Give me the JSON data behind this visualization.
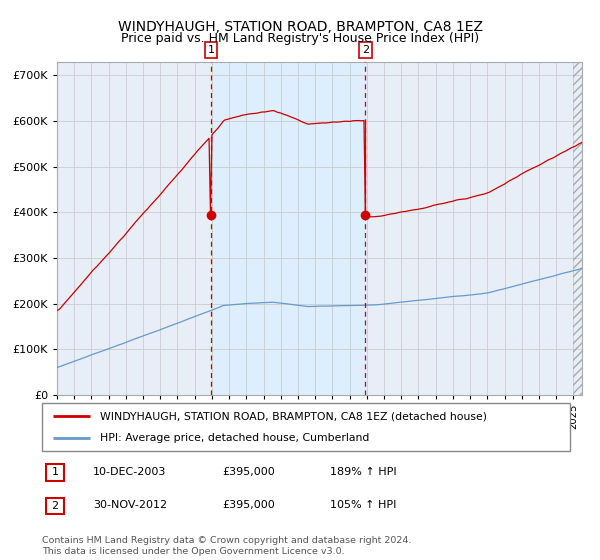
{
  "title": "WINDYHAUGH, STATION ROAD, BRAMPTON, CA8 1EZ",
  "subtitle": "Price paid vs. HM Land Registry's House Price Index (HPI)",
  "ylabel_ticks": [
    "£0",
    "£100K",
    "£200K",
    "£300K",
    "£400K",
    "£500K",
    "£600K",
    "£700K"
  ],
  "ytick_values": [
    0,
    100000,
    200000,
    300000,
    400000,
    500000,
    600000,
    700000
  ],
  "ylim": [
    0,
    730000
  ],
  "xlim_start": 1995.0,
  "xlim_end": 2025.5,
  "sale1_date": 2003.94,
  "sale1_price": 395000,
  "sale2_date": 2012.92,
  "sale2_price": 395000,
  "red_line_color": "#cc0000",
  "blue_line_color": "#6699cc",
  "shade_color": "#ddeeff",
  "grid_color": "#cccccc",
  "bg_color": "#e8eef8",
  "legend_label_red": "WINDYHAUGH, STATION ROAD, BRAMPTON, CA8 1EZ (detached house)",
  "legend_label_blue": "HPI: Average price, detached house, Cumberland",
  "table_row1": [
    "1",
    "10-DEC-2003",
    "£395,000",
    "189% ↑ HPI"
  ],
  "table_row2": [
    "2",
    "30-NOV-2012",
    "£395,000",
    "105% ↑ HPI"
  ],
  "footnote": "Contains HM Land Registry data © Crown copyright and database right 2024.\nThis data is licensed under the Open Government Licence v3.0.",
  "title_fontsize": 10,
  "subtitle_fontsize": 9
}
